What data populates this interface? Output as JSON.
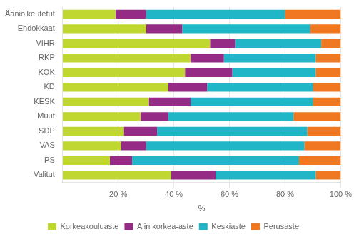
{
  "chart_data": {
    "type": "bar",
    "orientation": "horizontal",
    "stacked": true,
    "categories": [
      "Äänioikeutetut",
      "Ehdokkaat",
      "VIHR",
      "RKP",
      "KOK",
      "KD",
      "KESK",
      "Muut",
      "SDP",
      "VAS",
      "PS",
      "Valitut"
    ],
    "series": [
      {
        "name": "Korkeakouluaste",
        "color": "#bfd730",
        "values": [
          19,
          30,
          53,
          46,
          44,
          38,
          31,
          28,
          22,
          21,
          17,
          39
        ]
      },
      {
        "name": "Alin korkea-aste",
        "color": "#952b85",
        "values": [
          11,
          13,
          9,
          12,
          17,
          14,
          15,
          10,
          12,
          9,
          8,
          16
        ]
      },
      {
        "name": "Keskiaste",
        "color": "#21b5c8",
        "values": [
          50,
          46,
          31,
          33,
          30,
          38,
          44,
          45,
          54,
          57,
          60,
          36
        ]
      },
      {
        "name": "Perusaste",
        "color": "#f07820",
        "values": [
          20,
          11,
          7,
          9,
          9,
          10,
          10,
          17,
          12,
          13,
          15,
          9
        ]
      }
    ],
    "xlabel": "%",
    "xlim": [
      0,
      100
    ],
    "xticks": [
      {
        "value": 20,
        "label": "20 %"
      },
      {
        "value": 40,
        "label": "40 %"
      },
      {
        "value": 60,
        "label": "60 %"
      },
      {
        "value": 80,
        "label": "80 %"
      },
      {
        "value": 100,
        "label": "100 %"
      }
    ],
    "grid": true,
    "legend": "bottom"
  }
}
